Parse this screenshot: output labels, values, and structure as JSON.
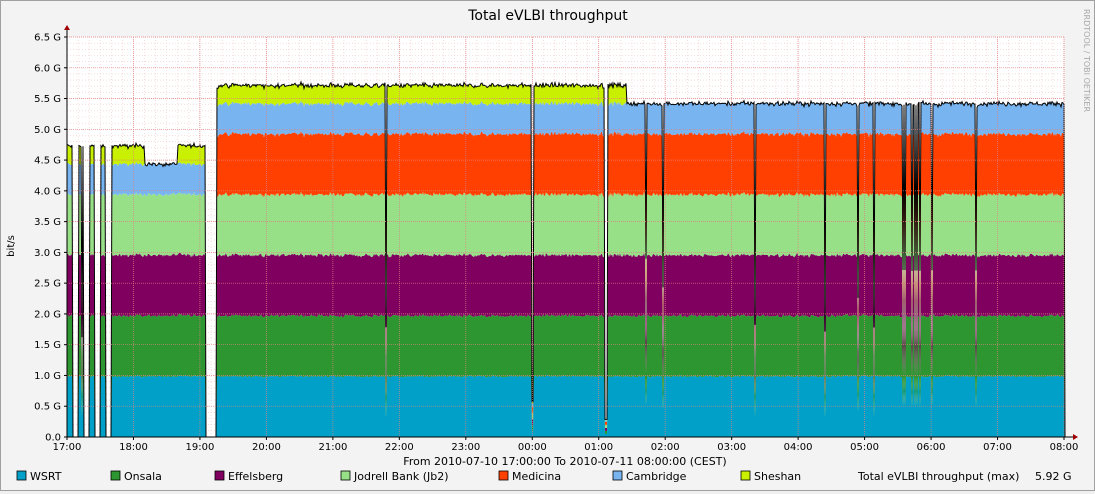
{
  "chart_data": {
    "type": "area",
    "stacked": true,
    "title": "Total eVLBI throughput",
    "ylabel": "bit/s",
    "xlabel": "From 2010-07-10 17:00:00 To 2010-07-11 08:00:00 (CEST)",
    "side_label": "RRDTOOL / TOBI OETIKER",
    "ylim": [
      0,
      6.5
    ],
    "y_ticks": [
      0,
      0.5,
      1.0,
      1.5,
      2.0,
      2.5,
      3.0,
      3.5,
      4.0,
      4.5,
      5.0,
      5.5,
      6.0,
      6.5
    ],
    "y_tick_labels": [
      "0.0",
      "0.5 G",
      "1.0 G",
      "1.5 G",
      "2.0 G",
      "2.5 G",
      "3.0 G",
      "3.5 G",
      "4.0 G",
      "4.5 G",
      "5.0 G",
      "5.5 G",
      "6.0 G",
      "6.5 G"
    ],
    "x_ticks": [
      "17:00",
      "18:00",
      "19:00",
      "20:00",
      "21:00",
      "22:00",
      "23:00",
      "00:00",
      "01:00",
      "02:00",
      "03:00",
      "04:00",
      "05:00",
      "06:00",
      "07:00",
      "08:00"
    ],
    "grid": true,
    "legend_position": "bottom",
    "series": [
      {
        "name": "WSRT",
        "color": "#00a0c8",
        "nominal": 1.0
      },
      {
        "name": "Onsala",
        "color": "#2e9630",
        "nominal": 1.0
      },
      {
        "name": "Effelsberg",
        "color": "#800060",
        "nominal": 1.0
      },
      {
        "name": "Jodrell Bank (Jb2)",
        "color": "#98e088",
        "nominal": 1.0
      },
      {
        "name": "Medicina",
        "color": "#ff4000",
        "nominal": 1.0
      },
      {
        "name": "Cambridge",
        "color": "#78b4f0",
        "nominal": 0.5
      },
      {
        "name": "Sheshan",
        "color": "#c8f000",
        "nominal": 0.3
      }
    ],
    "active_periods": [
      {
        "from": "17:00",
        "to": "17:45",
        "active": [
          "WSRT",
          "Onsala",
          "Effelsberg",
          "Jodrell Bank (Jb2)",
          "Cambridge",
          "Sheshan"
        ],
        "pattern": "intermittent"
      },
      {
        "from": "17:45",
        "to": "18:10",
        "active": [
          "WSRT",
          "Onsala",
          "Effelsberg",
          "Jodrell Bank (Jb2)",
          "Cambridge",
          "Sheshan"
        ]
      },
      {
        "from": "18:10",
        "to": "18:40",
        "active": [
          "WSRT",
          "Onsala",
          "Effelsberg",
          "Jodrell Bank (Jb2)",
          "Cambridge"
        ]
      },
      {
        "from": "18:40",
        "to": "19:05",
        "active": [
          "WSRT",
          "Onsala",
          "Effelsberg",
          "Jodrell Bank (Jb2)",
          "Cambridge",
          "Sheshan"
        ]
      },
      {
        "from": "19:15",
        "to": "01:25",
        "active": [
          "WSRT",
          "Onsala",
          "Effelsberg",
          "Jodrell Bank (Jb2)",
          "Medicina",
          "Cambridge",
          "Sheshan"
        ]
      },
      {
        "from": "01:25",
        "to": "08:00",
        "active": [
          "WSRT",
          "Onsala",
          "Effelsberg",
          "Jodrell Bank (Jb2)",
          "Medicina",
          "Cambridge"
        ]
      }
    ],
    "total_max_label": "Total eVLBI throughput (max)",
    "total_max_value": "5.92 G"
  }
}
